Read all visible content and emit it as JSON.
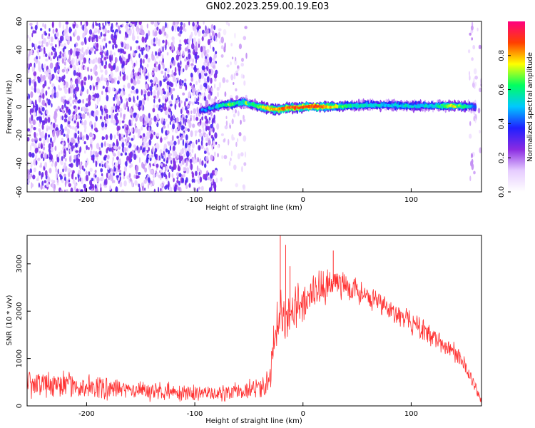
{
  "title": "GN02.2023.259.00.19.E03",
  "chart_data": [
    {
      "type": "heatmap",
      "xlabel": "Height of straight line (km)",
      "ylabel": "Frequency (Hz)",
      "xlim": [
        -255,
        165
      ],
      "ylim": [
        -60,
        60
      ],
      "xticks": [
        -200,
        -100,
        0,
        100
      ],
      "yticks": [
        -60,
        -40,
        -20,
        0,
        20,
        40,
        60
      ],
      "colorbar": {
        "label": "Normalized spectral amplitude",
        "range": [
          0,
          1
        ],
        "ticks": [
          "0.0",
          "0.2",
          "0.4",
          "0.6",
          "0.8"
        ],
        "colors": [
          "#ffffff",
          "#e6ccff",
          "#8a2be2",
          "#2020ff",
          "#00c8ff",
          "#00ff60",
          "#ffff00",
          "#ff4000",
          "#ff0080"
        ]
      },
      "noise_regions": [
        {
          "x_from": -255,
          "x_to": -80,
          "density": "dense"
        },
        {
          "x_from": -80,
          "x_to": -52,
          "density": "sparse"
        },
        {
          "x_from": 153,
          "x_to": 165,
          "density": "sparse"
        }
      ],
      "ridge": {
        "description": "narrow signal band near 0 Hz",
        "x": [
          -95,
          -85,
          -75,
          -65,
          -55,
          -45,
          -35,
          -25,
          -15,
          -5,
          5,
          20,
          40,
          60,
          80,
          100,
          120,
          140,
          160
        ],
        "center_hz": [
          -3,
          -1,
          1,
          2,
          3,
          1,
          -1,
          -2,
          -1,
          -0.5,
          0,
          0,
          0.5,
          1,
          1,
          0.5,
          0.5,
          0.5,
          0
        ],
        "amplitude": [
          0.35,
          0.45,
          0.55,
          0.6,
          0.55,
          0.6,
          0.75,
          0.8,
          0.85,
          0.85,
          0.9,
          0.85,
          0.6,
          0.55,
          0.5,
          0.55,
          0.5,
          0.75,
          0.4
        ]
      }
    },
    {
      "type": "line",
      "xlabel": "Height of straight line (km)",
      "ylabel": "SNR (10 * v/v)",
      "xlim": [
        -255,
        165
      ],
      "ylim": [
        0,
        3600
      ],
      "xticks": [
        -200,
        -100,
        0,
        100
      ],
      "yticks": [
        0,
        1000,
        2000,
        3000
      ],
      "color": "#ff3030",
      "envelope": {
        "x": [
          -255,
          -230,
          -200,
          -150,
          -100,
          -80,
          -60,
          -45,
          -35,
          -30,
          -28,
          -25,
          -22,
          -20,
          -15,
          -10,
          0,
          10,
          20,
          30,
          40,
          60,
          80,
          100,
          120,
          140,
          150,
          160,
          165
        ],
        "mean": [
          480,
          450,
          400,
          330,
          260,
          260,
          290,
          360,
          450,
          550,
          1300,
          1800,
          1900,
          1950,
          1950,
          2000,
          2150,
          2350,
          2500,
          2650,
          2550,
          2280,
          2050,
          1750,
          1450,
          1150,
          850,
          350,
          100
        ],
        "spread": [
          350,
          330,
          300,
          260,
          200,
          200,
          220,
          280,
          350,
          500,
          700,
          850,
          900,
          850,
          800,
          700,
          550,
          500,
          450,
          420,
          380,
          320,
          300,
          280,
          260,
          240,
          220,
          180,
          80
        ]
      },
      "spikes": [
        {
          "x": -21,
          "y": 3650
        },
        {
          "x": -16,
          "y": 3400
        },
        {
          "x": -12,
          "y": 2950
        },
        {
          "x": 28,
          "y": 3280
        }
      ]
    }
  ]
}
